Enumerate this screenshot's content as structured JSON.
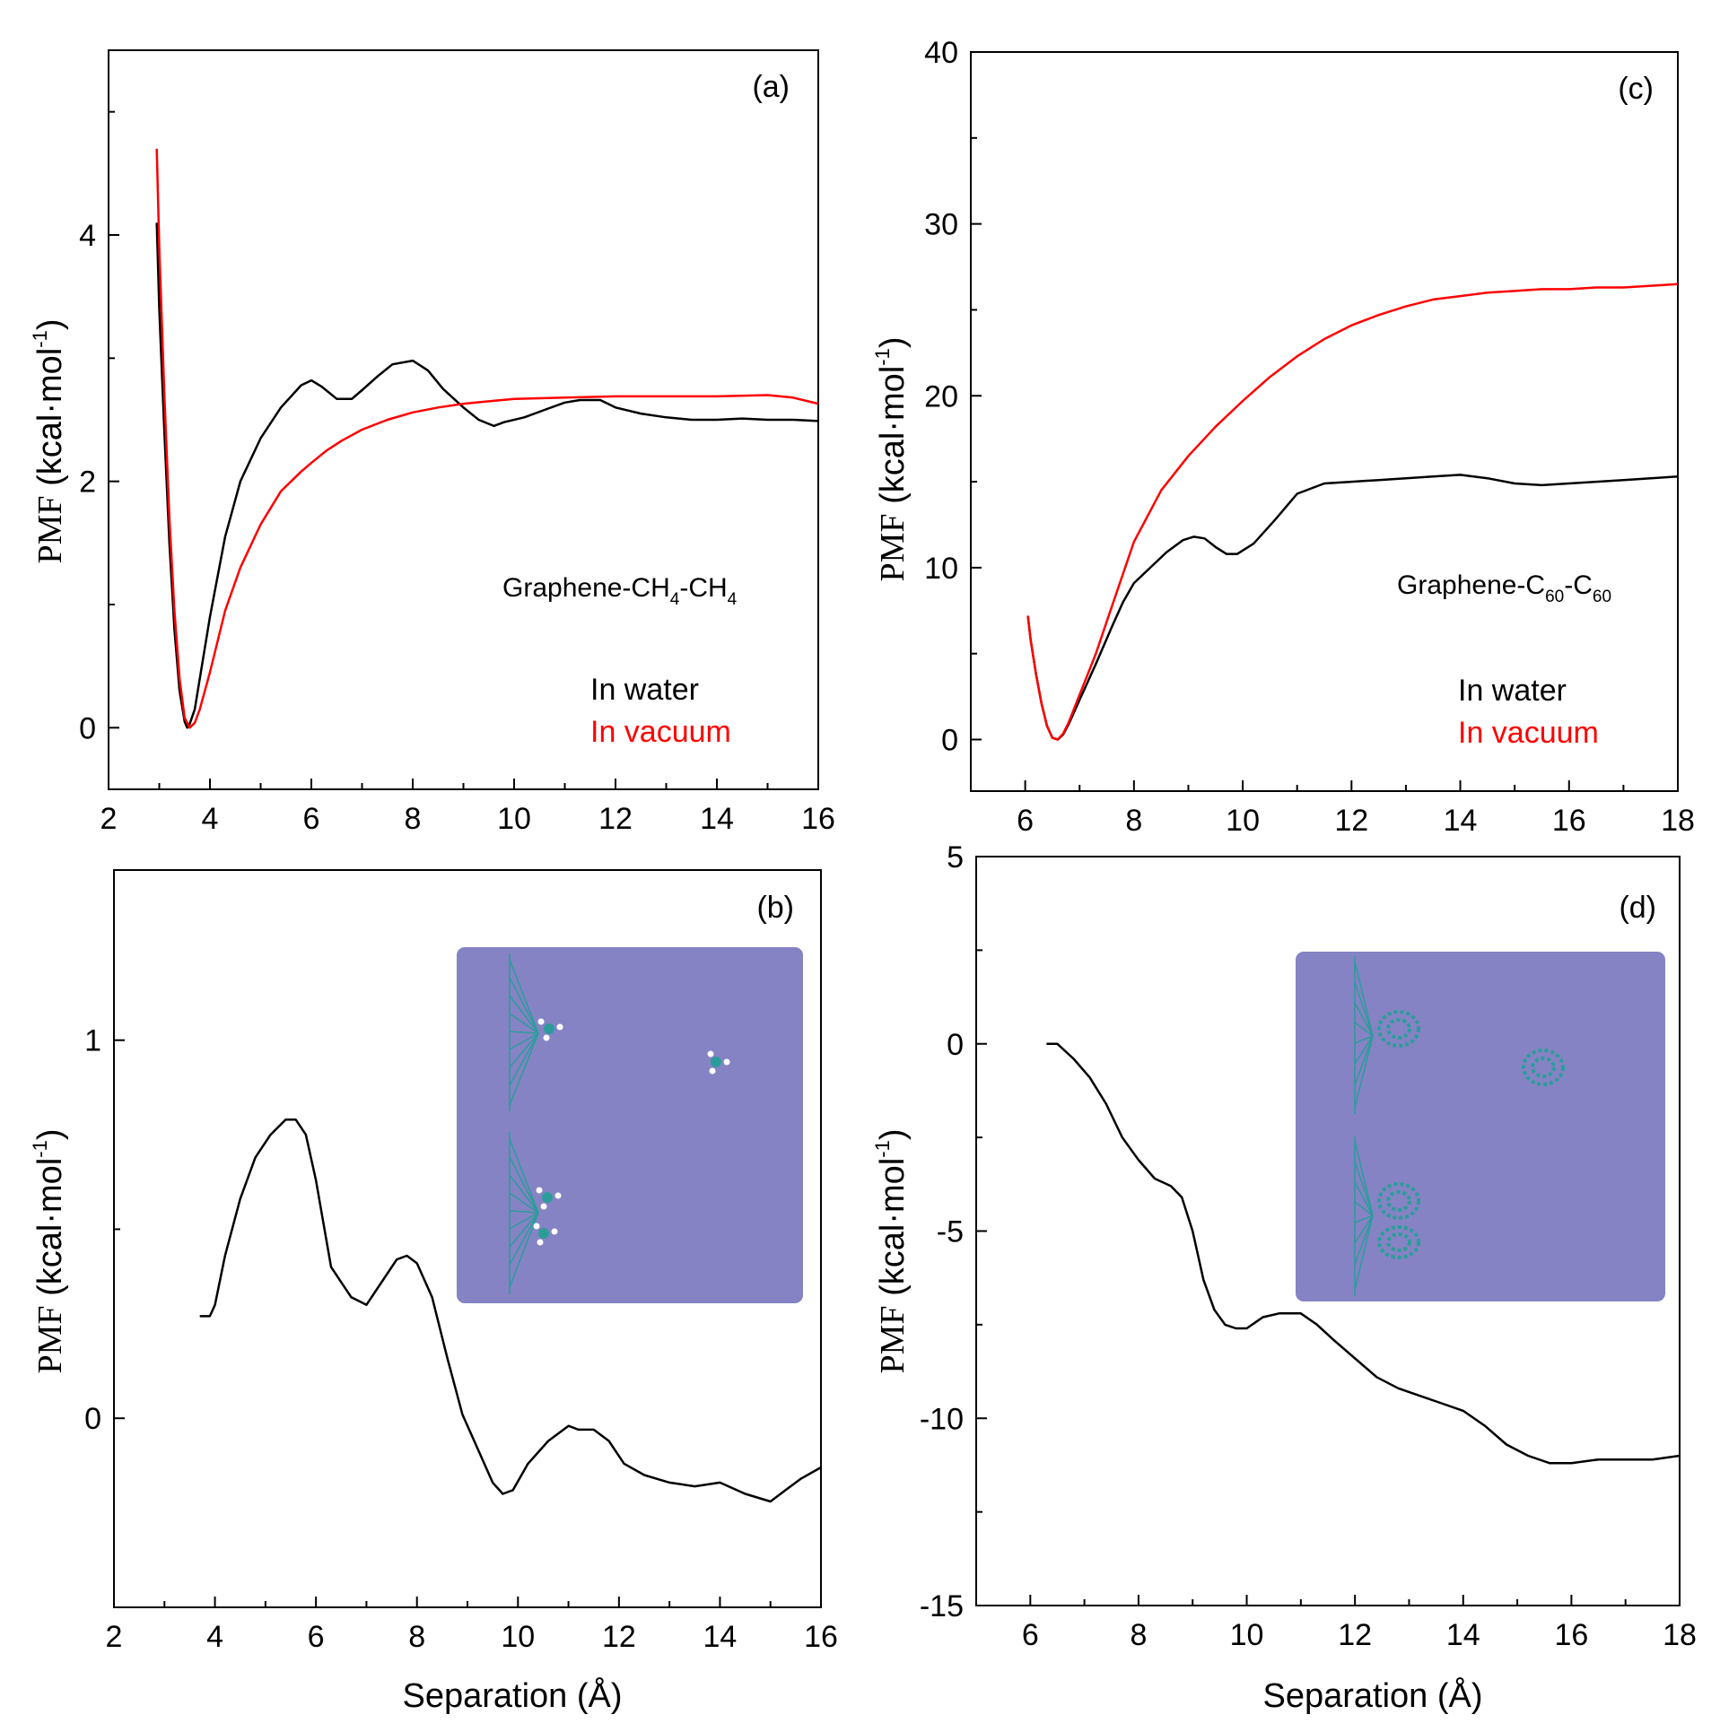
{
  "colors": {
    "water": "#000000",
    "vacuum": "#ff0000",
    "inset_bg": "#8583c4",
    "graphene": "#2a9d9a"
  },
  "axes_text": {
    "xlabel": "Separation (Å)",
    "ylabel_main": "PMF",
    "ylabel_unit": "(kcal·mol",
    "ylabel_sup": "-1",
    "ylabel_close": ")"
  },
  "chart_data": [
    {
      "panel": "(a)",
      "type": "line",
      "title": "",
      "label_main": "Graphene-CH",
      "label_sub1": "4",
      "label_mid": "-CH",
      "label_sub2": "4",
      "xlim": [
        2,
        16
      ],
      "ylim": [
        -0.5,
        5.5
      ],
      "xticks": [
        2,
        4,
        6,
        8,
        10,
        12,
        14,
        16
      ],
      "yticks": [
        0,
        2,
        4
      ],
      "legend": [
        "In water",
        "In vacuum"
      ],
      "legend_placement": "bottom-right",
      "series": [
        {
          "name": "In water",
          "color": "#000000",
          "x": [
            2.95,
            3.0,
            3.1,
            3.2,
            3.3,
            3.4,
            3.5,
            3.55,
            3.6,
            3.7,
            3.8,
            4.0,
            4.3,
            4.6,
            5.0,
            5.4,
            5.8,
            6.0,
            6.2,
            6.5,
            6.8,
            7.0,
            7.3,
            7.6,
            8.0,
            8.3,
            8.6,
            9.0,
            9.3,
            9.6,
            9.8,
            10.2,
            10.6,
            11.0,
            11.3,
            11.7,
            12.0,
            12.5,
            13.0,
            13.5,
            14.0,
            14.5,
            15.0,
            15.5,
            16.0
          ],
          "y": [
            4.1,
            3.4,
            2.4,
            1.5,
            0.8,
            0.3,
            0.05,
            0.0,
            0.03,
            0.15,
            0.4,
            0.9,
            1.55,
            2.0,
            2.35,
            2.6,
            2.78,
            2.82,
            2.77,
            2.67,
            2.67,
            2.74,
            2.85,
            2.95,
            2.98,
            2.9,
            2.75,
            2.6,
            2.5,
            2.45,
            2.48,
            2.52,
            2.58,
            2.64,
            2.66,
            2.66,
            2.6,
            2.55,
            2.52,
            2.5,
            2.5,
            2.51,
            2.5,
            2.5,
            2.49
          ]
        },
        {
          "name": "In vacuum",
          "color": "#ff0000",
          "x": [
            2.95,
            3.0,
            3.1,
            3.2,
            3.3,
            3.4,
            3.5,
            3.6,
            3.7,
            3.8,
            4.0,
            4.3,
            4.6,
            5.0,
            5.4,
            5.8,
            6.0,
            6.3,
            6.6,
            7.0,
            7.5,
            8.0,
            8.5,
            9.0,
            9.5,
            10.0,
            11.0,
            12.0,
            13.0,
            14.0,
            15.0,
            15.5,
            16.0
          ],
          "y": [
            4.7,
            3.9,
            2.7,
            1.7,
            0.95,
            0.4,
            0.08,
            0.0,
            0.04,
            0.15,
            0.45,
            0.95,
            1.3,
            1.65,
            1.92,
            2.08,
            2.15,
            2.25,
            2.33,
            2.42,
            2.5,
            2.56,
            2.6,
            2.63,
            2.65,
            2.67,
            2.68,
            2.69,
            2.69,
            2.69,
            2.7,
            2.68,
            2.63
          ]
        }
      ]
    },
    {
      "panel": "(b)",
      "type": "line",
      "title": "",
      "xlim": [
        2,
        16
      ],
      "ylim": [
        -0.5,
        1.45
      ],
      "xticks": [
        2,
        4,
        6,
        8,
        10,
        12,
        14,
        16
      ],
      "yticks": [
        0,
        1
      ],
      "xlabel": "Separation (Å)",
      "series": [
        {
          "name": "",
          "color": "#000000",
          "x": [
            3.7,
            3.9,
            4.0,
            4.2,
            4.5,
            4.8,
            5.1,
            5.4,
            5.6,
            5.8,
            6.0,
            6.3,
            6.7,
            7.0,
            7.3,
            7.6,
            7.8,
            8.0,
            8.3,
            8.6,
            8.9,
            9.2,
            9.5,
            9.7,
            9.9,
            10.2,
            10.6,
            11.0,
            11.2,
            11.5,
            11.8,
            12.1,
            12.5,
            13.0,
            13.5,
            14.0,
            14.5,
            15.0,
            15.3,
            15.6,
            16.0
          ],
          "y": [
            0.27,
            0.27,
            0.3,
            0.43,
            0.58,
            0.69,
            0.75,
            0.79,
            0.79,
            0.75,
            0.63,
            0.4,
            0.32,
            0.3,
            0.36,
            0.42,
            0.43,
            0.41,
            0.32,
            0.16,
            0.01,
            -0.08,
            -0.17,
            -0.2,
            -0.19,
            -0.12,
            -0.06,
            -0.02,
            -0.03,
            -0.03,
            -0.06,
            -0.12,
            -0.15,
            -0.17,
            -0.18,
            -0.17,
            -0.2,
            -0.22,
            -0.19,
            -0.16,
            -0.13
          ]
        }
      ]
    },
    {
      "panel": "(c)",
      "type": "line",
      "title": "",
      "label_main": "Graphene-C",
      "label_sub1": "60",
      "label_mid": "-C",
      "label_sub2": "60",
      "xlim": [
        5,
        18
      ],
      "ylim": [
        -3,
        40
      ],
      "xticks": [
        6,
        8,
        10,
        12,
        14,
        16,
        18
      ],
      "yticks": [
        0,
        10,
        20,
        30,
        40
      ],
      "legend": [
        "In water",
        "In vacuum"
      ],
      "legend_placement": "bottom-right",
      "series": [
        {
          "name": "In water",
          "color": "#000000",
          "x": [
            6.05,
            6.1,
            6.2,
            6.3,
            6.4,
            6.5,
            6.6,
            6.7,
            6.8,
            7.0,
            7.3,
            7.6,
            7.8,
            8.0,
            8.3,
            8.6,
            8.9,
            9.1,
            9.3,
            9.5,
            9.7,
            9.9,
            10.2,
            10.6,
            11.0,
            11.5,
            12.0,
            12.5,
            13.0,
            13.5,
            14.0,
            14.5,
            15.0,
            15.5,
            16.0,
            16.5,
            17.0,
            17.5,
            18.0
          ],
          "y": [
            7.2,
            5.8,
            3.8,
            2.1,
            0.8,
            0.1,
            0.0,
            0.3,
            0.9,
            2.3,
            4.4,
            6.6,
            8.0,
            9.1,
            10.0,
            10.9,
            11.6,
            11.8,
            11.7,
            11.2,
            10.8,
            10.8,
            11.4,
            12.8,
            14.3,
            14.9,
            15.0,
            15.1,
            15.2,
            15.3,
            15.4,
            15.2,
            14.9,
            14.8,
            14.9,
            15.0,
            15.1,
            15.2,
            15.3
          ]
        },
        {
          "name": "In vacuum",
          "color": "#ff0000",
          "x": [
            6.05,
            6.1,
            6.2,
            6.3,
            6.4,
            6.5,
            6.6,
            6.7,
            6.8,
            7.0,
            7.3,
            7.6,
            8.0,
            8.5,
            9.0,
            9.5,
            10.0,
            10.5,
            11.0,
            11.5,
            12.0,
            12.5,
            13.0,
            13.5,
            14.0,
            14.5,
            15.0,
            15.5,
            16.0,
            16.5,
            17.0,
            17.5,
            18.0
          ],
          "y": [
            7.2,
            5.8,
            3.8,
            2.1,
            0.8,
            0.1,
            0.0,
            0.35,
            1.0,
            2.6,
            5.0,
            7.8,
            11.5,
            14.5,
            16.5,
            18.2,
            19.7,
            21.1,
            22.3,
            23.3,
            24.1,
            24.7,
            25.2,
            25.6,
            25.8,
            26.0,
            26.1,
            26.2,
            26.2,
            26.3,
            26.3,
            26.4,
            26.5
          ]
        }
      ]
    },
    {
      "panel": "(d)",
      "type": "line",
      "title": "",
      "xlim": [
        5,
        18
      ],
      "ylim": [
        -15,
        5
      ],
      "xticks": [
        6,
        8,
        10,
        12,
        14,
        16,
        18
      ],
      "yticks": [
        -15,
        -10,
        -5,
        0,
        5
      ],
      "xlabel": "Separation (Å)",
      "series": [
        {
          "name": "",
          "color": "#000000",
          "x": [
            6.3,
            6.5,
            6.8,
            7.1,
            7.4,
            7.7,
            8.0,
            8.3,
            8.6,
            8.8,
            9.0,
            9.2,
            9.4,
            9.6,
            9.8,
            10.0,
            10.3,
            10.6,
            11.0,
            11.3,
            11.6,
            12.0,
            12.4,
            12.8,
            13.2,
            13.6,
            14.0,
            14.4,
            14.8,
            15.2,
            15.6,
            16.0,
            16.5,
            17.0,
            17.5,
            18.0
          ],
          "y": [
            0.0,
            0.0,
            -0.4,
            -0.9,
            -1.6,
            -2.5,
            -3.1,
            -3.6,
            -3.8,
            -4.1,
            -5.0,
            -6.3,
            -7.1,
            -7.5,
            -7.6,
            -7.6,
            -7.3,
            -7.2,
            -7.2,
            -7.5,
            -7.9,
            -8.4,
            -8.9,
            -9.2,
            -9.4,
            -9.6,
            -9.8,
            -10.2,
            -10.7,
            -11.0,
            -11.2,
            -11.2,
            -11.1,
            -11.1,
            -11.1,
            -11.0
          ]
        }
      ]
    }
  ]
}
